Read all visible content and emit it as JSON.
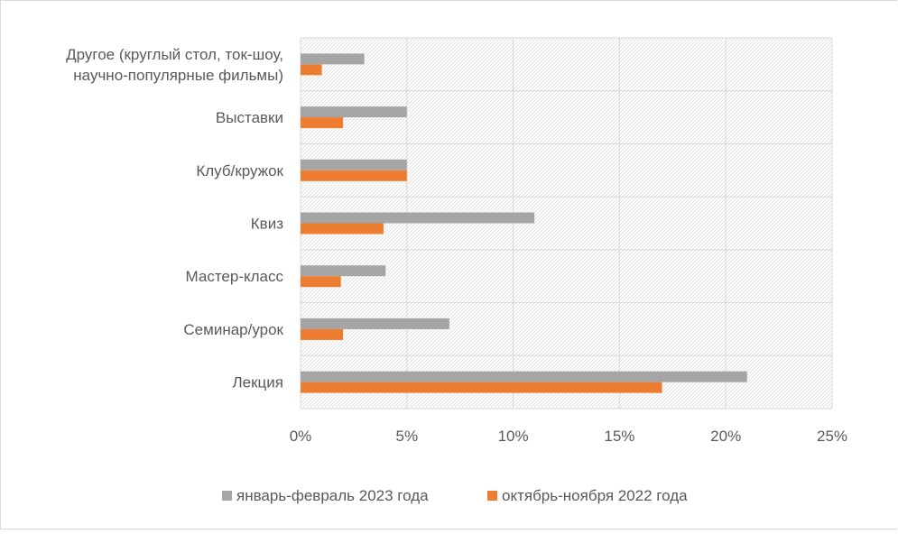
{
  "chart_data": {
    "type": "bar",
    "orientation": "horizontal",
    "title": "",
    "xlabel": "",
    "ylabel": "",
    "categories": [
      [
        "Другое (круглый стол, ток-шоу,",
        "научно-популярные фильмы)"
      ],
      [
        "Выставки"
      ],
      [
        "Клуб/кружок"
      ],
      [
        "Квиз"
      ],
      [
        "Мастер-класс"
      ],
      [
        "Семинар/урок"
      ],
      [
        "Лекция"
      ]
    ],
    "series": [
      {
        "name": "январь-февраль 2023 года",
        "color": "#a5a5a5",
        "values": [
          3,
          5,
          5,
          11,
          4,
          7,
          21
        ]
      },
      {
        "name": "октябрь-ноября 2022 года",
        "color": "#ed7d31",
        "values": [
          1,
          2,
          5,
          3.9,
          1.9,
          2,
          17
        ]
      }
    ],
    "xlim": [
      0,
      25
    ],
    "xticks": [
      0,
      5,
      10,
      15,
      20,
      25
    ],
    "tick_suffix": "%",
    "grid": true,
    "plot_background": "hatched",
    "legend_position": "bottom"
  }
}
